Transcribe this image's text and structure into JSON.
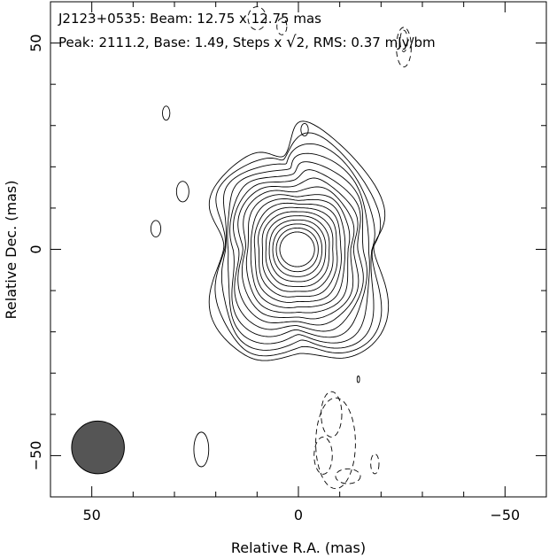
{
  "chart_data": {
    "type": "contour",
    "header": {
      "line1": "J2123+0535: Beam: 12.75 x 12.75 mas",
      "line2_pre": "Peak: 2111.2, Base: 1.49, Steps x ",
      "line2_sqrt": "√",
      "line2_post": "2, RMS: 0.37 mJy/bm"
    },
    "xlabel": "Relative R.A. (mas)",
    "ylabel": "Relative Dec. (mas)",
    "xlim": [
      60,
      -60
    ],
    "ylim": [
      -60,
      60
    ],
    "x_ticks": [
      50,
      0,
      -50
    ],
    "y_ticks": [
      50,
      0,
      -50
    ],
    "x_tick_labels": [
      "50",
      "0",
      "−50"
    ],
    "y_tick_labels": [
      "50",
      "0",
      "−50"
    ],
    "beam": {
      "x": 48.5,
      "y": -48,
      "major": 12.75,
      "minor": 12.75,
      "color": "#555555"
    },
    "peak_mjy_per_beam": 2111.2,
    "base_contour": 1.49,
    "contour_step_factor": "√2",
    "rms_mjy_per_beam": 0.37,
    "colors": {
      "contour": "#000000",
      "beam_fill": "#555555"
    }
  }
}
